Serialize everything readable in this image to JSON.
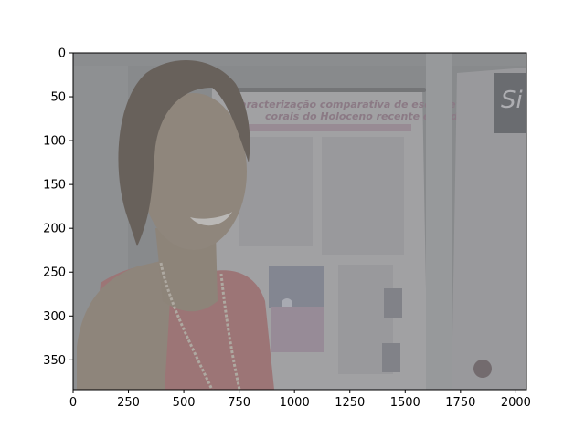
{
  "image_axes": {
    "x_ticks": [
      "0",
      "250",
      "500",
      "750",
      "1000",
      "1250",
      "1500",
      "1750",
      "2000"
    ],
    "y_ticks": [
      "0",
      "50",
      "100",
      "150",
      "200",
      "250",
      "300",
      "350"
    ],
    "x_range": [
      0,
      2048
    ],
    "y_range": [
      0,
      384
    ]
  },
  "photo": {
    "poster_title_line1": "Caracterização comparativa de esqueletos de",
    "poster_title_line2": "corais do Holoceno recente e moderno",
    "side_poster_letter": "Si",
    "colors": {
      "background_wall": "#86888a",
      "poster_paper": "#a7a7a9",
      "poster_accent": "#9b8a94",
      "skin": "#8e8273",
      "hair": "#5b5249",
      "shirt": "#a06c6c"
    }
  }
}
